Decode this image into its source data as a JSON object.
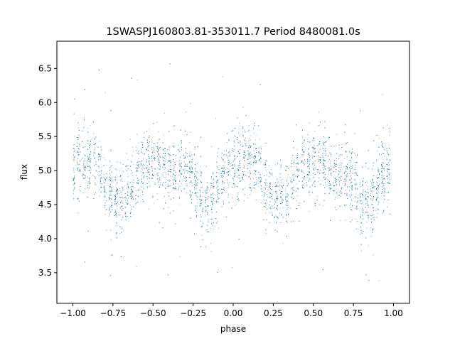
{
  "chart_data": {
    "type": "scatter",
    "title": "1SWASPJ160803.81-353011.7 Period 8480081.0s",
    "xlabel": "phase",
    "ylabel": "flux",
    "xlim": [
      -1.1,
      1.1
    ],
    "ylim": [
      3.05,
      6.9
    ],
    "xticks": [
      -1.0,
      -0.75,
      -0.5,
      -0.25,
      0.0,
      0.25,
      0.5,
      0.75,
      1.0
    ],
    "xtick_labels": [
      "−1.00",
      "−0.75",
      "−0.50",
      "−0.25",
      "0.00",
      "0.25",
      "0.50",
      "0.75",
      "1.00"
    ],
    "yticks": [
      3.5,
      4.0,
      4.5,
      5.0,
      5.5,
      6.0,
      6.5
    ],
    "ytick_labels": [
      "3.5",
      "4.0",
      "4.5",
      "5.0",
      "5.5",
      "6.0",
      "6.5"
    ],
    "grid": false,
    "series": [
      {
        "marker_color": "#1f77b4",
        "trend_x": [
          -1.0,
          -0.95,
          -0.9,
          -0.85,
          -0.8,
          -0.75,
          -0.7,
          -0.65,
          -0.6,
          -0.55,
          -0.5,
          -0.45,
          -0.4,
          -0.35,
          -0.3,
          -0.25,
          -0.2,
          -0.15,
          -0.1,
          -0.05,
          0.0,
          0.05,
          0.1,
          0.15,
          0.2,
          0.25,
          0.3,
          0.35,
          0.4,
          0.45,
          0.5,
          0.55,
          0.6,
          0.65,
          0.7,
          0.75,
          0.8,
          0.85,
          0.9,
          0.95,
          1.0
        ],
        "trend_y": [
          5.05,
          5.15,
          5.2,
          5.15,
          4.75,
          4.55,
          4.6,
          4.75,
          4.95,
          5.1,
          5.15,
          5.1,
          5.0,
          4.95,
          5.0,
          4.85,
          4.6,
          4.55,
          4.75,
          5.0,
          5.05,
          5.15,
          5.2,
          5.15,
          4.75,
          4.55,
          4.6,
          4.75,
          4.95,
          5.1,
          5.15,
          5.1,
          5.0,
          4.95,
          5.0,
          4.85,
          4.6,
          4.55,
          4.75,
          5.0,
          5.05
        ],
        "scatter_sd": 0.3,
        "n_points": 6000
      }
    ]
  }
}
